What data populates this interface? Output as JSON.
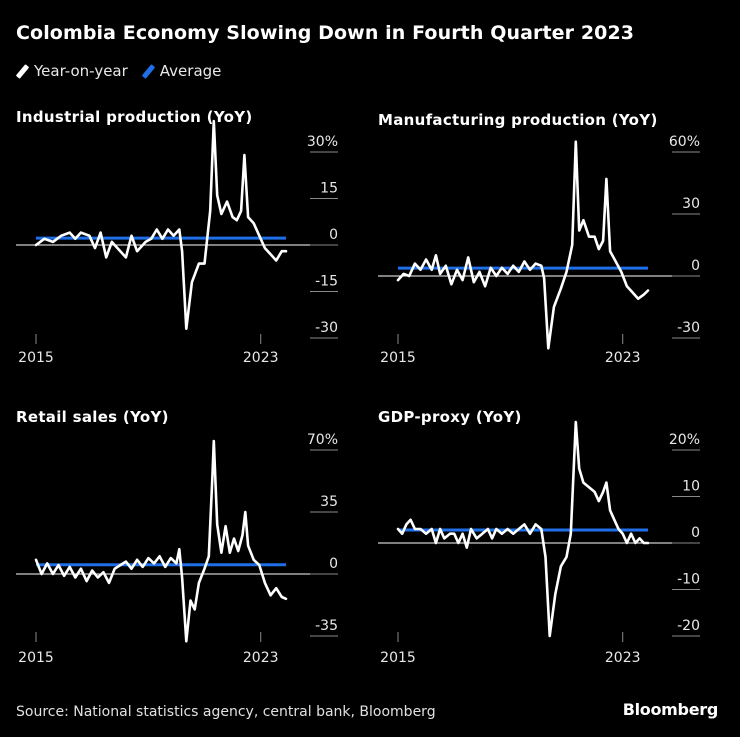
{
  "title": "Colombia Economy Slowing Down in Fourth Quarter 2023",
  "legend": [
    {
      "label": "Year-on-year",
      "color": "#ffffff"
    },
    {
      "label": "Average",
      "color": "#1f6fe8"
    }
  ],
  "source": "Source: National statistics agency, central bank, Bloomberg",
  "brand": "Bloomberg",
  "chart_data": [
    {
      "type": "line",
      "title": "Industrial production (YoY)",
      "x_start": 2015,
      "x_end": 2023.9,
      "xticks": [
        "2015",
        "2023"
      ],
      "ylim": [
        -30,
        30
      ],
      "yticks": [
        {
          "v": 30,
          "label": "30%"
        },
        {
          "v": 15,
          "label": "15"
        },
        {
          "v": 0,
          "label": "0"
        },
        {
          "v": -15,
          "label": "-15"
        },
        {
          "v": -30,
          "label": "-30"
        }
      ],
      "average": 2.2,
      "series": [
        {
          "name": "Year-on-year",
          "t": 2015.0,
          "v": 0
        },
        {
          "t": 2015.3,
          "v": 2
        },
        {
          "t": 2015.6,
          "v": 1
        },
        {
          "t": 2015.9,
          "v": 3
        },
        {
          "t": 2016.2,
          "v": 4
        },
        {
          "t": 2016.4,
          "v": 2
        },
        {
          "t": 2016.6,
          "v": 4
        },
        {
          "t": 2016.9,
          "v": 3
        },
        {
          "t": 2017.1,
          "v": -1
        },
        {
          "t": 2017.3,
          "v": 4
        },
        {
          "t": 2017.5,
          "v": -4
        },
        {
          "t": 2017.7,
          "v": 1
        },
        {
          "t": 2018.0,
          "v": -2
        },
        {
          "t": 2018.2,
          "v": -4
        },
        {
          "t": 2018.4,
          "v": 3
        },
        {
          "t": 2018.6,
          "v": -2
        },
        {
          "t": 2018.9,
          "v": 1
        },
        {
          "t": 2019.1,
          "v": 2
        },
        {
          "t": 2019.3,
          "v": 5
        },
        {
          "t": 2019.5,
          "v": 2
        },
        {
          "t": 2019.7,
          "v": 5
        },
        {
          "t": 2019.9,
          "v": 3
        },
        {
          "t": 2020.1,
          "v": 5
        },
        {
          "t": 2020.2,
          "v": -2
        },
        {
          "t": 2020.35,
          "v": -27
        },
        {
          "t": 2020.55,
          "v": -12
        },
        {
          "t": 2020.8,
          "v": -6
        },
        {
          "t": 2021.0,
          "v": -6
        },
        {
          "t": 2021.2,
          "v": 11
        },
        {
          "t": 2021.33,
          "v": 40
        },
        {
          "t": 2021.45,
          "v": 16
        },
        {
          "t": 2021.6,
          "v": 10
        },
        {
          "t": 2021.8,
          "v": 14
        },
        {
          "t": 2022.0,
          "v": 9
        },
        {
          "t": 2022.15,
          "v": 8
        },
        {
          "t": 2022.3,
          "v": 11
        },
        {
          "t": 2022.42,
          "v": 29
        },
        {
          "t": 2022.55,
          "v": 9
        },
        {
          "t": 2022.75,
          "v": 7
        },
        {
          "t": 2022.95,
          "v": 3
        },
        {
          "t": 2023.15,
          "v": -1
        },
        {
          "t": 2023.35,
          "v": -3
        },
        {
          "t": 2023.55,
          "v": -5
        },
        {
          "t": 2023.75,
          "v": -2
        },
        {
          "t": 2023.9,
          "v": -2
        }
      ]
    },
    {
      "type": "line",
      "title": "Manufacturing production (YoY)",
      "x_start": 2015,
      "x_end": 2023.9,
      "xticks": [
        "2015",
        "2023"
      ],
      "ylim": [
        -30,
        60
      ],
      "yticks": [
        {
          "v": 60,
          "label": "60%"
        },
        {
          "v": 30,
          "label": "30"
        },
        {
          "v": 0,
          "label": "0"
        },
        {
          "v": -30,
          "label": "-30"
        }
      ],
      "average": 3.8,
      "series": [
        {
          "t": 2015.0,
          "v": -2
        },
        {
          "t": 2015.2,
          "v": 1
        },
        {
          "t": 2015.4,
          "v": 0
        },
        {
          "t": 2015.6,
          "v": 6
        },
        {
          "t": 2015.8,
          "v": 3
        },
        {
          "t": 2016.0,
          "v": 8
        },
        {
          "t": 2016.2,
          "v": 3
        },
        {
          "t": 2016.35,
          "v": 10
        },
        {
          "t": 2016.5,
          "v": 1
        },
        {
          "t": 2016.7,
          "v": 5
        },
        {
          "t": 2016.9,
          "v": -4
        },
        {
          "t": 2017.1,
          "v": 3
        },
        {
          "t": 2017.3,
          "v": -2
        },
        {
          "t": 2017.5,
          "v": 9
        },
        {
          "t": 2017.7,
          "v": -3
        },
        {
          "t": 2017.9,
          "v": 2
        },
        {
          "t": 2018.1,
          "v": -5
        },
        {
          "t": 2018.3,
          "v": 4
        },
        {
          "t": 2018.5,
          "v": 0
        },
        {
          "t": 2018.7,
          "v": 4
        },
        {
          "t": 2018.9,
          "v": 1
        },
        {
          "t": 2019.1,
          "v": 5
        },
        {
          "t": 2019.3,
          "v": 2
        },
        {
          "t": 2019.5,
          "v": 7
        },
        {
          "t": 2019.7,
          "v": 3
        },
        {
          "t": 2019.9,
          "v": 6
        },
        {
          "t": 2020.1,
          "v": 5
        },
        {
          "t": 2020.2,
          "v": -1
        },
        {
          "t": 2020.35,
          "v": -35
        },
        {
          "t": 2020.55,
          "v": -15
        },
        {
          "t": 2020.8,
          "v": -6
        },
        {
          "t": 2021.0,
          "v": 2
        },
        {
          "t": 2021.2,
          "v": 15
        },
        {
          "t": 2021.33,
          "v": 65
        },
        {
          "t": 2021.45,
          "v": 22
        },
        {
          "t": 2021.6,
          "v": 27
        },
        {
          "t": 2021.8,
          "v": 19
        },
        {
          "t": 2022.0,
          "v": 19
        },
        {
          "t": 2022.15,
          "v": 13
        },
        {
          "t": 2022.3,
          "v": 17
        },
        {
          "t": 2022.42,
          "v": 47
        },
        {
          "t": 2022.55,
          "v": 12
        },
        {
          "t": 2022.75,
          "v": 7
        },
        {
          "t": 2022.95,
          "v": 2
        },
        {
          "t": 2023.15,
          "v": -5
        },
        {
          "t": 2023.35,
          "v": -8
        },
        {
          "t": 2023.55,
          "v": -11
        },
        {
          "t": 2023.75,
          "v": -9
        },
        {
          "t": 2023.9,
          "v": -7
        }
      ]
    },
    {
      "type": "line",
      "title": "Retail sales (YoY)",
      "x_start": 2015,
      "x_end": 2023.9,
      "xticks": [
        "2015",
        "2023"
      ],
      "ylim": [
        -35,
        70
      ],
      "yticks": [
        {
          "v": 70,
          "label": "70%"
        },
        {
          "v": 35,
          "label": "35"
        },
        {
          "v": 0,
          "label": "0"
        },
        {
          "v": -35,
          "label": "-35"
        }
      ],
      "average": 5.2,
      "series": [
        {
          "t": 2015.0,
          "v": 8
        },
        {
          "t": 2015.2,
          "v": 0
        },
        {
          "t": 2015.4,
          "v": 6
        },
        {
          "t": 2015.6,
          "v": 0
        },
        {
          "t": 2015.8,
          "v": 5
        },
        {
          "t": 2016.0,
          "v": -1
        },
        {
          "t": 2016.2,
          "v": 4
        },
        {
          "t": 2016.4,
          "v": -2
        },
        {
          "t": 2016.6,
          "v": 3
        },
        {
          "t": 2016.8,
          "v": -4
        },
        {
          "t": 2017.0,
          "v": 2
        },
        {
          "t": 2017.2,
          "v": -2
        },
        {
          "t": 2017.4,
          "v": 1
        },
        {
          "t": 2017.6,
          "v": -5
        },
        {
          "t": 2017.8,
          "v": 3
        },
        {
          "t": 2018.0,
          "v": 5
        },
        {
          "t": 2018.2,
          "v": 7
        },
        {
          "t": 2018.4,
          "v": 3
        },
        {
          "t": 2018.6,
          "v": 8
        },
        {
          "t": 2018.8,
          "v": 4
        },
        {
          "t": 2019.0,
          "v": 9
        },
        {
          "t": 2019.2,
          "v": 6
        },
        {
          "t": 2019.4,
          "v": 10
        },
        {
          "t": 2019.6,
          "v": 4
        },
        {
          "t": 2019.8,
          "v": 9
        },
        {
          "t": 2020.0,
          "v": 6
        },
        {
          "t": 2020.1,
          "v": 14
        },
        {
          "t": 2020.2,
          "v": -2
        },
        {
          "t": 2020.35,
          "v": -38
        },
        {
          "t": 2020.5,
          "v": -15
        },
        {
          "t": 2020.65,
          "v": -20
        },
        {
          "t": 2020.8,
          "v": -5
        },
        {
          "t": 2021.0,
          "v": 3
        },
        {
          "t": 2021.15,
          "v": 10
        },
        {
          "t": 2021.28,
          "v": 55
        },
        {
          "t": 2021.33,
          "v": 75
        },
        {
          "t": 2021.45,
          "v": 28
        },
        {
          "t": 2021.6,
          "v": 12
        },
        {
          "t": 2021.75,
          "v": 27
        },
        {
          "t": 2021.9,
          "v": 12
        },
        {
          "t": 2022.05,
          "v": 20
        },
        {
          "t": 2022.2,
          "v": 13
        },
        {
          "t": 2022.35,
          "v": 22
        },
        {
          "t": 2022.45,
          "v": 35
        },
        {
          "t": 2022.55,
          "v": 16
        },
        {
          "t": 2022.75,
          "v": 8
        },
        {
          "t": 2022.95,
          "v": 5
        },
        {
          "t": 2023.15,
          "v": -5
        },
        {
          "t": 2023.35,
          "v": -12
        },
        {
          "t": 2023.55,
          "v": -8
        },
        {
          "t": 2023.75,
          "v": -13
        },
        {
          "t": 2023.9,
          "v": -14
        }
      ]
    },
    {
      "type": "line",
      "title": "GDP-proxy (YoY)",
      "x_start": 2015,
      "x_end": 2023.9,
      "xticks": [
        "2015",
        "2023"
      ],
      "ylim": [
        -20,
        20
      ],
      "yticks": [
        {
          "v": 20,
          "label": "20%"
        },
        {
          "v": 10,
          "label": "10"
        },
        {
          "v": 0,
          "label": "0"
        },
        {
          "v": -10,
          "label": "-10"
        },
        {
          "v": -20,
          "label": "-20"
        }
      ],
      "average": 2.8,
      "series": [
        {
          "t": 2015.0,
          "v": 3
        },
        {
          "t": 2015.15,
          "v": 2
        },
        {
          "t": 2015.3,
          "v": 4
        },
        {
          "t": 2015.45,
          "v": 5
        },
        {
          "t": 2015.6,
          "v": 3
        },
        {
          "t": 2015.8,
          "v": 3
        },
        {
          "t": 2016.0,
          "v": 2
        },
        {
          "t": 2016.2,
          "v": 3
        },
        {
          "t": 2016.35,
          "v": 0
        },
        {
          "t": 2016.5,
          "v": 3
        },
        {
          "t": 2016.65,
          "v": 1
        },
        {
          "t": 2016.85,
          "v": 2
        },
        {
          "t": 2017.0,
          "v": 2
        },
        {
          "t": 2017.15,
          "v": 0
        },
        {
          "t": 2017.3,
          "v": 2
        },
        {
          "t": 2017.45,
          "v": -1
        },
        {
          "t": 2017.6,
          "v": 3
        },
        {
          "t": 2017.8,
          "v": 1
        },
        {
          "t": 2018.0,
          "v": 2
        },
        {
          "t": 2018.2,
          "v": 3
        },
        {
          "t": 2018.35,
          "v": 1
        },
        {
          "t": 2018.5,
          "v": 3
        },
        {
          "t": 2018.7,
          "v": 2
        },
        {
          "t": 2018.9,
          "v": 3
        },
        {
          "t": 2019.1,
          "v": 2
        },
        {
          "t": 2019.3,
          "v": 3
        },
        {
          "t": 2019.5,
          "v": 4
        },
        {
          "t": 2019.7,
          "v": 2
        },
        {
          "t": 2019.9,
          "v": 4
        },
        {
          "t": 2020.1,
          "v": 3
        },
        {
          "t": 2020.25,
          "v": -3
        },
        {
          "t": 2020.4,
          "v": -20
        },
        {
          "t": 2020.6,
          "v": -11
        },
        {
          "t": 2020.8,
          "v": -5
        },
        {
          "t": 2021.0,
          "v": -3
        },
        {
          "t": 2021.15,
          "v": 2
        },
        {
          "t": 2021.33,
          "v": 26
        },
        {
          "t": 2021.45,
          "v": 16
        },
        {
          "t": 2021.6,
          "v": 13
        },
        {
          "t": 2021.8,
          "v": 12
        },
        {
          "t": 2022.0,
          "v": 11
        },
        {
          "t": 2022.15,
          "v": 9
        },
        {
          "t": 2022.3,
          "v": 11
        },
        {
          "t": 2022.42,
          "v": 13
        },
        {
          "t": 2022.55,
          "v": 7
        },
        {
          "t": 2022.7,
          "v": 5
        },
        {
          "t": 2022.85,
          "v": 3
        },
        {
          "t": 2023.0,
          "v": 2
        },
        {
          "t": 2023.15,
          "v": 0
        },
        {
          "t": 2023.3,
          "v": 2
        },
        {
          "t": 2023.45,
          "v": 0
        },
        {
          "t": 2023.6,
          "v": 1
        },
        {
          "t": 2023.75,
          "v": 0
        },
        {
          "t": 2023.9,
          "v": 0
        }
      ]
    }
  ]
}
